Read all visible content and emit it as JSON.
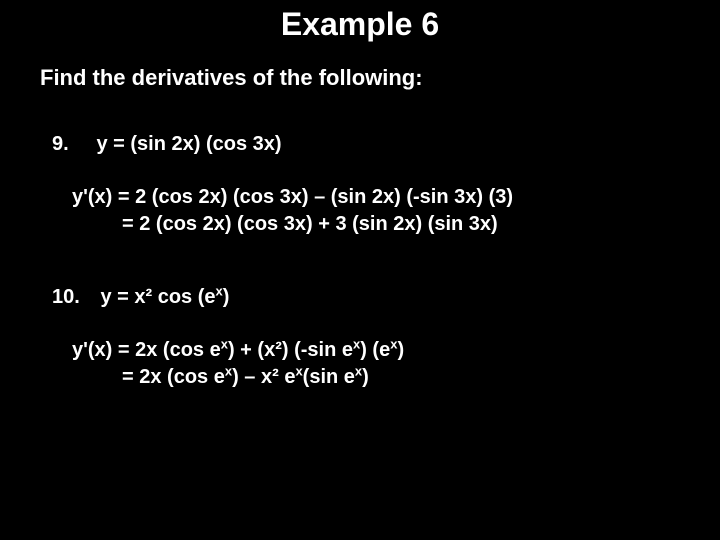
{
  "background_color": "#000000",
  "text_color": "#ffffff",
  "title": "Example 6",
  "title_fontsize": 32,
  "subtitle": "Find the derivatives of the following:",
  "subtitle_fontsize": 22,
  "body_fontsize": 20,
  "problems": [
    {
      "number": "9.",
      "statement": "y = (sin 2x) (cos 3x)",
      "solution_line1": "y'(x) = 2 (cos 2x) (cos 3x) – (sin 2x) (-sin 3x) (3)",
      "solution_line2": "= 2 (cos 2x) (cos 3x) + 3 (sin 2x) (sin 3x)"
    },
    {
      "number": "10.",
      "statement_html": "y = x² cos (e<sup>x</sup>)",
      "solution_line1_html": "y'(x) = 2x (cos e<sup>x</sup>) + (x²) (-sin e<sup>x</sup>) (e<sup>x</sup>)",
      "solution_line2_html": "= 2x (cos e<sup>x</sup>) – x² e<sup>x</sup>(sin e<sup>x</sup>)"
    }
  ]
}
